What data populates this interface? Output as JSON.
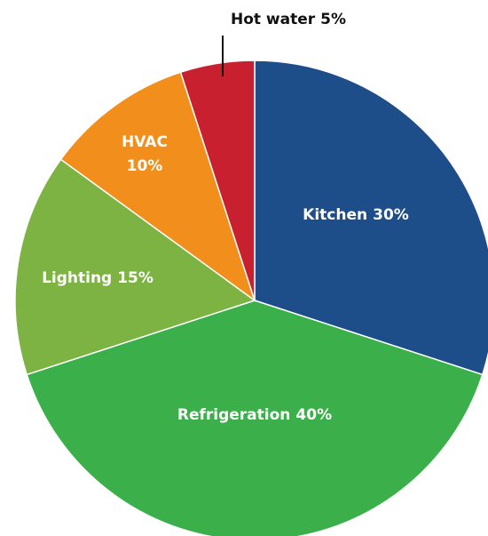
{
  "chart_data": {
    "type": "pie",
    "categories": [
      "Kitchen",
      "Refrigeration",
      "Lighting",
      "HVAC",
      "Hot water"
    ],
    "values": [
      30,
      40,
      15,
      10,
      5
    ],
    "value_labels": [
      "30%",
      "40%",
      "15%",
      "10%",
      "5%"
    ],
    "colors": [
      "#1d4e89",
      "#3bb04a",
      "#7cb342",
      "#f28f1c",
      "#c8202f"
    ],
    "start_angle": 90,
    "direction": "clockwise"
  }
}
